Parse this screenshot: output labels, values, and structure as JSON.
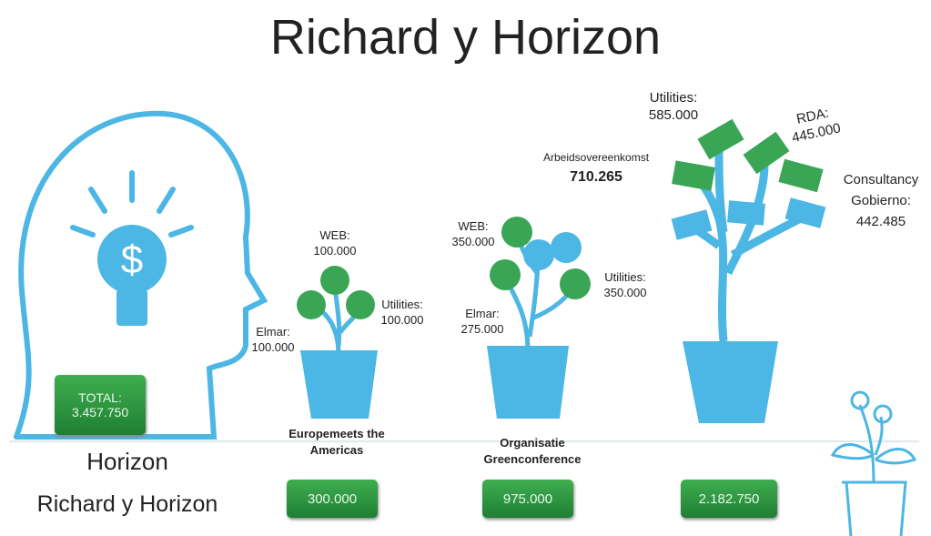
{
  "title": "Richard y Horizon",
  "head": {
    "total_label": "TOTAL:",
    "total_value": "3.457.750",
    "name": "Horizon",
    "subname": "Richard y Horizon"
  },
  "plants": [
    {
      "name": "Europemeets the Americas",
      "total": "300.000",
      "items": [
        {
          "label": "WEB:",
          "value": "100.000"
        },
        {
          "label": "Elmar:",
          "value": "100.000"
        },
        {
          "label": "Utilities:",
          "value": "100.000"
        }
      ]
    },
    {
      "name": "Organisatie Greenconference",
      "total": "975.000",
      "items": [
        {
          "label": "WEB:",
          "value": "350.000"
        },
        {
          "label": "Elmar:",
          "value": "275.000"
        },
        {
          "label": "Utilities:",
          "value": "350.000"
        }
      ]
    },
    {
      "name": "",
      "total": "2.182.750",
      "items": [
        {
          "label": "Utilities:",
          "value": "585.000"
        },
        {
          "label": "RDA:",
          "value": "445.000"
        },
        {
          "label": "Arbeidsovereenkomst",
          "value": "710.265"
        },
        {
          "label": "Consultancy Gobierno:",
          "value": "442.485"
        }
      ]
    }
  ]
}
